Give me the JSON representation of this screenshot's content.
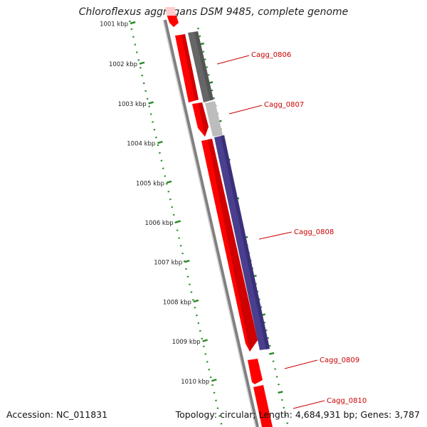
{
  "title": "Chloroflexus aggregans DSM 9485, complete genome",
  "accession": "Accession: NC_011831",
  "summary": "Topology: circular; Length: 4,684,931 bp; Genes: 3,787",
  "colors": {
    "forward_gene": "#ff0000",
    "dark_feature": "#666666",
    "light_feature": "#bdbdbd",
    "purple_feature": "#4a3f8f",
    "ticks": "#2e8b2e",
    "label_color": "#cc0000",
    "backbone": "#808080"
  },
  "scale": {
    "labels": [
      "1001 kbp",
      "1002 kbp",
      "1003 kbp",
      "1004 kbp",
      "1005 kbp",
      "1006 kbp",
      "1007 kbp",
      "1008 kbp",
      "1009 kbp",
      "1010 kbp"
    ]
  },
  "genes": [
    {
      "label": "Cagg_0806"
    },
    {
      "label": "Cagg_0807"
    },
    {
      "label": "Cagg_0808"
    },
    {
      "label": "Cagg_0809"
    },
    {
      "label": "Cagg_0810"
    }
  ]
}
